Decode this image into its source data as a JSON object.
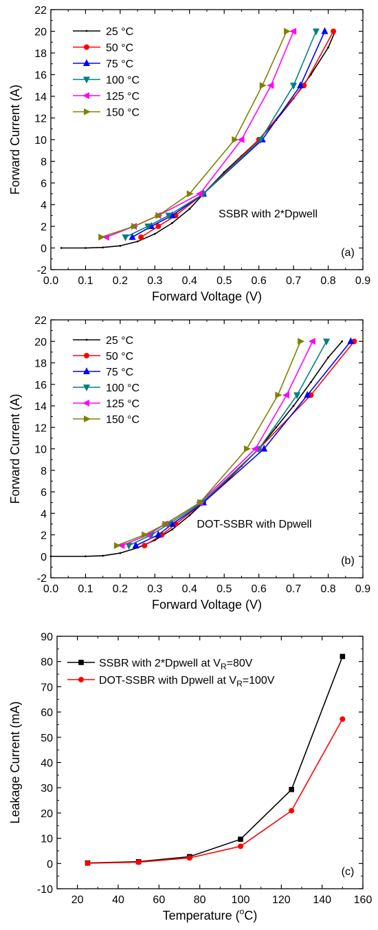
{
  "chart_data": [
    {
      "type": "line",
      "panel_label": "(a)",
      "annotation": "SSBR with 2*Dpwell",
      "xlabel": "Forward Voltage (V)",
      "ylabel": "Forward Current (A)",
      "xlim": [
        0.0,
        0.9
      ],
      "ylim": [
        -2,
        22
      ],
      "xticks": [
        "0.0",
        "0.1",
        "0.2",
        "0.3",
        "0.4",
        "0.5",
        "0.6",
        "0.7",
        "0.8",
        "0.9"
      ],
      "yticks": [
        "-2",
        "0",
        "2",
        "4",
        "6",
        "8",
        "10",
        "12",
        "14",
        "16",
        "18",
        "20",
        "22"
      ],
      "legend_position": "top-left",
      "series": [
        {
          "name": "25 °C",
          "color": "#000000",
          "marker": "small-dot",
          "x": [
            0.03,
            0.1,
            0.15,
            0.2,
            0.25,
            0.3,
            0.35,
            0.4,
            0.44,
            0.5,
            0.55,
            0.6,
            0.65,
            0.7,
            0.75,
            0.8,
            0.82
          ],
          "y": [
            0,
            0,
            0.05,
            0.2,
            0.6,
            1.3,
            2.3,
            3.6,
            5,
            7,
            8.5,
            10,
            11.8,
            13.8,
            16,
            18.5,
            20
          ]
        },
        {
          "name": "50 °C",
          "color": "#ff0000",
          "marker": "circle",
          "x": [
            0.26,
            0.31,
            0.36,
            0.44,
            0.6,
            0.73,
            0.815
          ],
          "y": [
            1,
            2,
            3,
            5,
            10,
            15,
            20
          ]
        },
        {
          "name": "75 °C",
          "color": "#0000ff",
          "marker": "triangle-up",
          "x": [
            0.235,
            0.29,
            0.35,
            0.44,
            0.61,
            0.72,
            0.79
          ],
          "y": [
            1,
            2,
            3,
            5,
            10,
            15,
            20
          ]
        },
        {
          "name": "100 °C",
          "color": "#008080",
          "marker": "triangle-down",
          "x": [
            0.215,
            0.28,
            0.34,
            0.44,
            0.605,
            0.7,
            0.765
          ],
          "y": [
            1,
            2,
            3,
            5,
            10,
            15,
            20
          ]
        },
        {
          "name": "125 °C",
          "color": "#ff00ff",
          "marker": "triangle-left",
          "x": [
            0.16,
            0.24,
            0.31,
            0.43,
            0.55,
            0.635,
            0.7
          ],
          "y": [
            1,
            2,
            3,
            5,
            10,
            15,
            20
          ]
        },
        {
          "name": "150 °C",
          "color": "#808000",
          "marker": "triangle-right",
          "x": [
            0.145,
            0.24,
            0.31,
            0.4,
            0.53,
            0.61,
            0.68
          ],
          "y": [
            1,
            2,
            3,
            5,
            10,
            15,
            20
          ]
        }
      ]
    },
    {
      "type": "line",
      "panel_label": "(b)",
      "annotation": "DOT-SSBR with Dpwell",
      "xlabel": "Forward Voltage (V)",
      "ylabel": "Forward Current (A)",
      "xlim": [
        0.0,
        0.9
      ],
      "ylim": [
        -2,
        22
      ],
      "xticks": [
        "0.0",
        "0.1",
        "0.2",
        "0.3",
        "0.4",
        "0.5",
        "0.6",
        "0.7",
        "0.8",
        "0.9"
      ],
      "yticks": [
        "-2",
        "0",
        "2",
        "4",
        "6",
        "8",
        "10",
        "12",
        "14",
        "16",
        "18",
        "20",
        "22"
      ],
      "legend_position": "top-left",
      "series": [
        {
          "name": "25 °C",
          "color": "#000000",
          "marker": "small-dot",
          "x": [
            0.0,
            0.1,
            0.15,
            0.2,
            0.25,
            0.3,
            0.35,
            0.4,
            0.44,
            0.5,
            0.55,
            0.6,
            0.65,
            0.7,
            0.75,
            0.8,
            0.84
          ],
          "y": [
            0,
            0,
            0.05,
            0.3,
            0.8,
            1.5,
            2.5,
            3.8,
            5,
            6.8,
            8.4,
            10,
            12,
            14,
            16.2,
            18.5,
            20
          ]
        },
        {
          "name": "50 °C",
          "color": "#ff0000",
          "marker": "circle",
          "x": [
            0.27,
            0.32,
            0.36,
            0.44,
            0.6,
            0.75,
            0.875
          ],
          "y": [
            1,
            2,
            3,
            5,
            10,
            15,
            20
          ]
        },
        {
          "name": "75 °C",
          "color": "#0000ff",
          "marker": "triangle-up",
          "x": [
            0.245,
            0.31,
            0.35,
            0.44,
            0.615,
            0.74,
            0.865
          ],
          "y": [
            1,
            2,
            3,
            5,
            10,
            15,
            20
          ]
        },
        {
          "name": "100 °C",
          "color": "#008080",
          "marker": "triangle-down",
          "x": [
            0.225,
            0.29,
            0.34,
            0.435,
            0.6,
            0.71,
            0.795
          ],
          "y": [
            1,
            2,
            3,
            5,
            10,
            15,
            20
          ]
        },
        {
          "name": "125 °C",
          "color": "#ff00ff",
          "marker": "triangle-left",
          "x": [
            0.205,
            0.28,
            0.33,
            0.43,
            0.59,
            0.68,
            0.755
          ],
          "y": [
            1,
            2,
            3,
            5,
            10,
            15,
            20
          ]
        },
        {
          "name": "150 °C",
          "color": "#808000",
          "marker": "triangle-right",
          "x": [
            0.19,
            0.27,
            0.33,
            0.43,
            0.565,
            0.655,
            0.72
          ],
          "y": [
            1,
            2,
            3,
            5,
            10,
            15,
            20
          ]
        }
      ]
    },
    {
      "type": "line",
      "panel_label": "(c)",
      "xlabel_text": "Temperature (",
      "xlabel_sup": "o",
      "xlabel_tail": "C)",
      "ylabel": "Leakage Current (mA)",
      "xlim": [
        10,
        160
      ],
      "ylim": [
        -10,
        90
      ],
      "xticks": [
        "20",
        "40",
        "60",
        "80",
        "100",
        "120",
        "140",
        "160"
      ],
      "yticks": [
        "-10",
        "0",
        "10",
        "20",
        "30",
        "40",
        "50",
        "60",
        "70",
        "80",
        "90"
      ],
      "legend_position": "top-left",
      "series": [
        {
          "name_main": "SSBR with 2*Dpwell  at V",
          "name_sub": "R",
          "name_tail": "=80V",
          "color": "#000000",
          "marker": "square",
          "x": [
            25,
            50,
            75,
            100,
            125,
            150
          ],
          "y": [
            0.2,
            0.7,
            2.7,
            9.6,
            29.3,
            82
          ]
        },
        {
          "name_main": "DOT-SSBR with Dpwell  at V",
          "name_sub": "R",
          "name_tail": "=100V",
          "color": "#ff0000",
          "marker": "circle",
          "x": [
            25,
            50,
            75,
            100,
            125,
            150
          ],
          "y": [
            0.1,
            0.5,
            2.2,
            6.8,
            20.9,
            57.2
          ]
        }
      ]
    }
  ]
}
